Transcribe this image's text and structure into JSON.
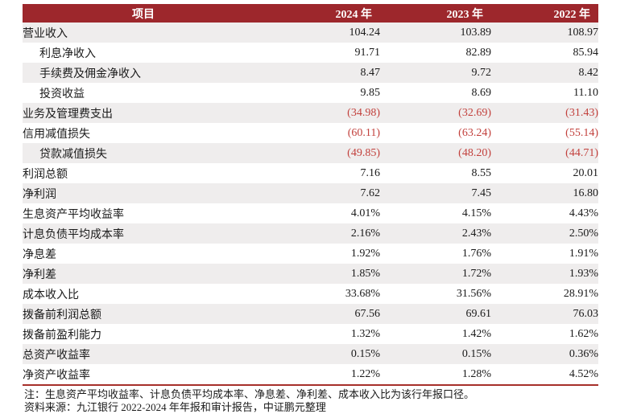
{
  "table": {
    "columns": [
      "项目",
      "2024 年",
      "2023 年",
      "2022 年"
    ],
    "rows": [
      {
        "label": "营业收入",
        "indent": false,
        "negative": false,
        "values": [
          "104.24",
          "103.89",
          "108.97"
        ]
      },
      {
        "label": "利息净收入",
        "indent": true,
        "negative": false,
        "values": [
          "91.71",
          "82.89",
          "85.94"
        ]
      },
      {
        "label": "手续费及佣金净收入",
        "indent": true,
        "negative": false,
        "values": [
          "8.47",
          "9.72",
          "8.42"
        ]
      },
      {
        "label": "投资收益",
        "indent": true,
        "negative": false,
        "values": [
          "9.85",
          "8.69",
          "11.10"
        ]
      },
      {
        "label": "业务及管理费支出",
        "indent": false,
        "negative": true,
        "values": [
          "(34.98)",
          "(32.69)",
          "(31.43)"
        ]
      },
      {
        "label": "信用减值损失",
        "indent": false,
        "negative": true,
        "values": [
          "(60.11)",
          "(63.24)",
          "(55.14)"
        ]
      },
      {
        "label": "贷款减值损失",
        "indent": true,
        "negative": true,
        "values": [
          "(49.85)",
          "(48.20)",
          "(44.71)"
        ]
      },
      {
        "label": "利润总额",
        "indent": false,
        "negative": false,
        "values": [
          "7.16",
          "8.55",
          "20.01"
        ]
      },
      {
        "label": "净利润",
        "indent": false,
        "negative": false,
        "values": [
          "7.62",
          "7.45",
          "16.80"
        ]
      },
      {
        "label": "生息资产平均收益率",
        "indent": false,
        "negative": false,
        "values": [
          "4.01%",
          "4.15%",
          "4.43%"
        ]
      },
      {
        "label": "计息负债平均成本率",
        "indent": false,
        "negative": false,
        "values": [
          "2.16%",
          "2.43%",
          "2.50%"
        ]
      },
      {
        "label": "净息差",
        "indent": false,
        "negative": false,
        "values": [
          "1.92%",
          "1.76%",
          "1.91%"
        ]
      },
      {
        "label": "净利差",
        "indent": false,
        "negative": false,
        "values": [
          "1.85%",
          "1.72%",
          "1.93%"
        ]
      },
      {
        "label": "成本收入比",
        "indent": false,
        "negative": false,
        "values": [
          "33.68%",
          "31.56%",
          "28.91%"
        ]
      },
      {
        "label": "拨备前利润总额",
        "indent": false,
        "negative": false,
        "values": [
          "67.56",
          "69.61",
          "76.03"
        ]
      },
      {
        "label": "拨备前盈利能力",
        "indent": false,
        "negative": false,
        "values": [
          "1.32%",
          "1.42%",
          "1.62%"
        ]
      },
      {
        "label": "总资产收益率",
        "indent": false,
        "negative": false,
        "values": [
          "0.15%",
          "0.15%",
          "0.36%"
        ]
      },
      {
        "label": "净资产收益率",
        "indent": false,
        "negative": false,
        "values": [
          "1.22%",
          "1.28%",
          "4.52%"
        ]
      }
    ],
    "note": "注：生息资产平均收益率、计息负债平均成本率、净息差、净利差、成本收入比为该行年报口径。",
    "source": "资料来源：九江银行 2022-2024 年年报和审计报告，中证鹏元整理"
  },
  "colors": {
    "header_bg": "#9D272C",
    "header_text": "#FFFFFF",
    "stripe": "#EFEDED",
    "negative": "#C2403C",
    "rule": "#A62F2A",
    "text": "#1A1A1A",
    "page_bg": "#FFFFFF"
  }
}
